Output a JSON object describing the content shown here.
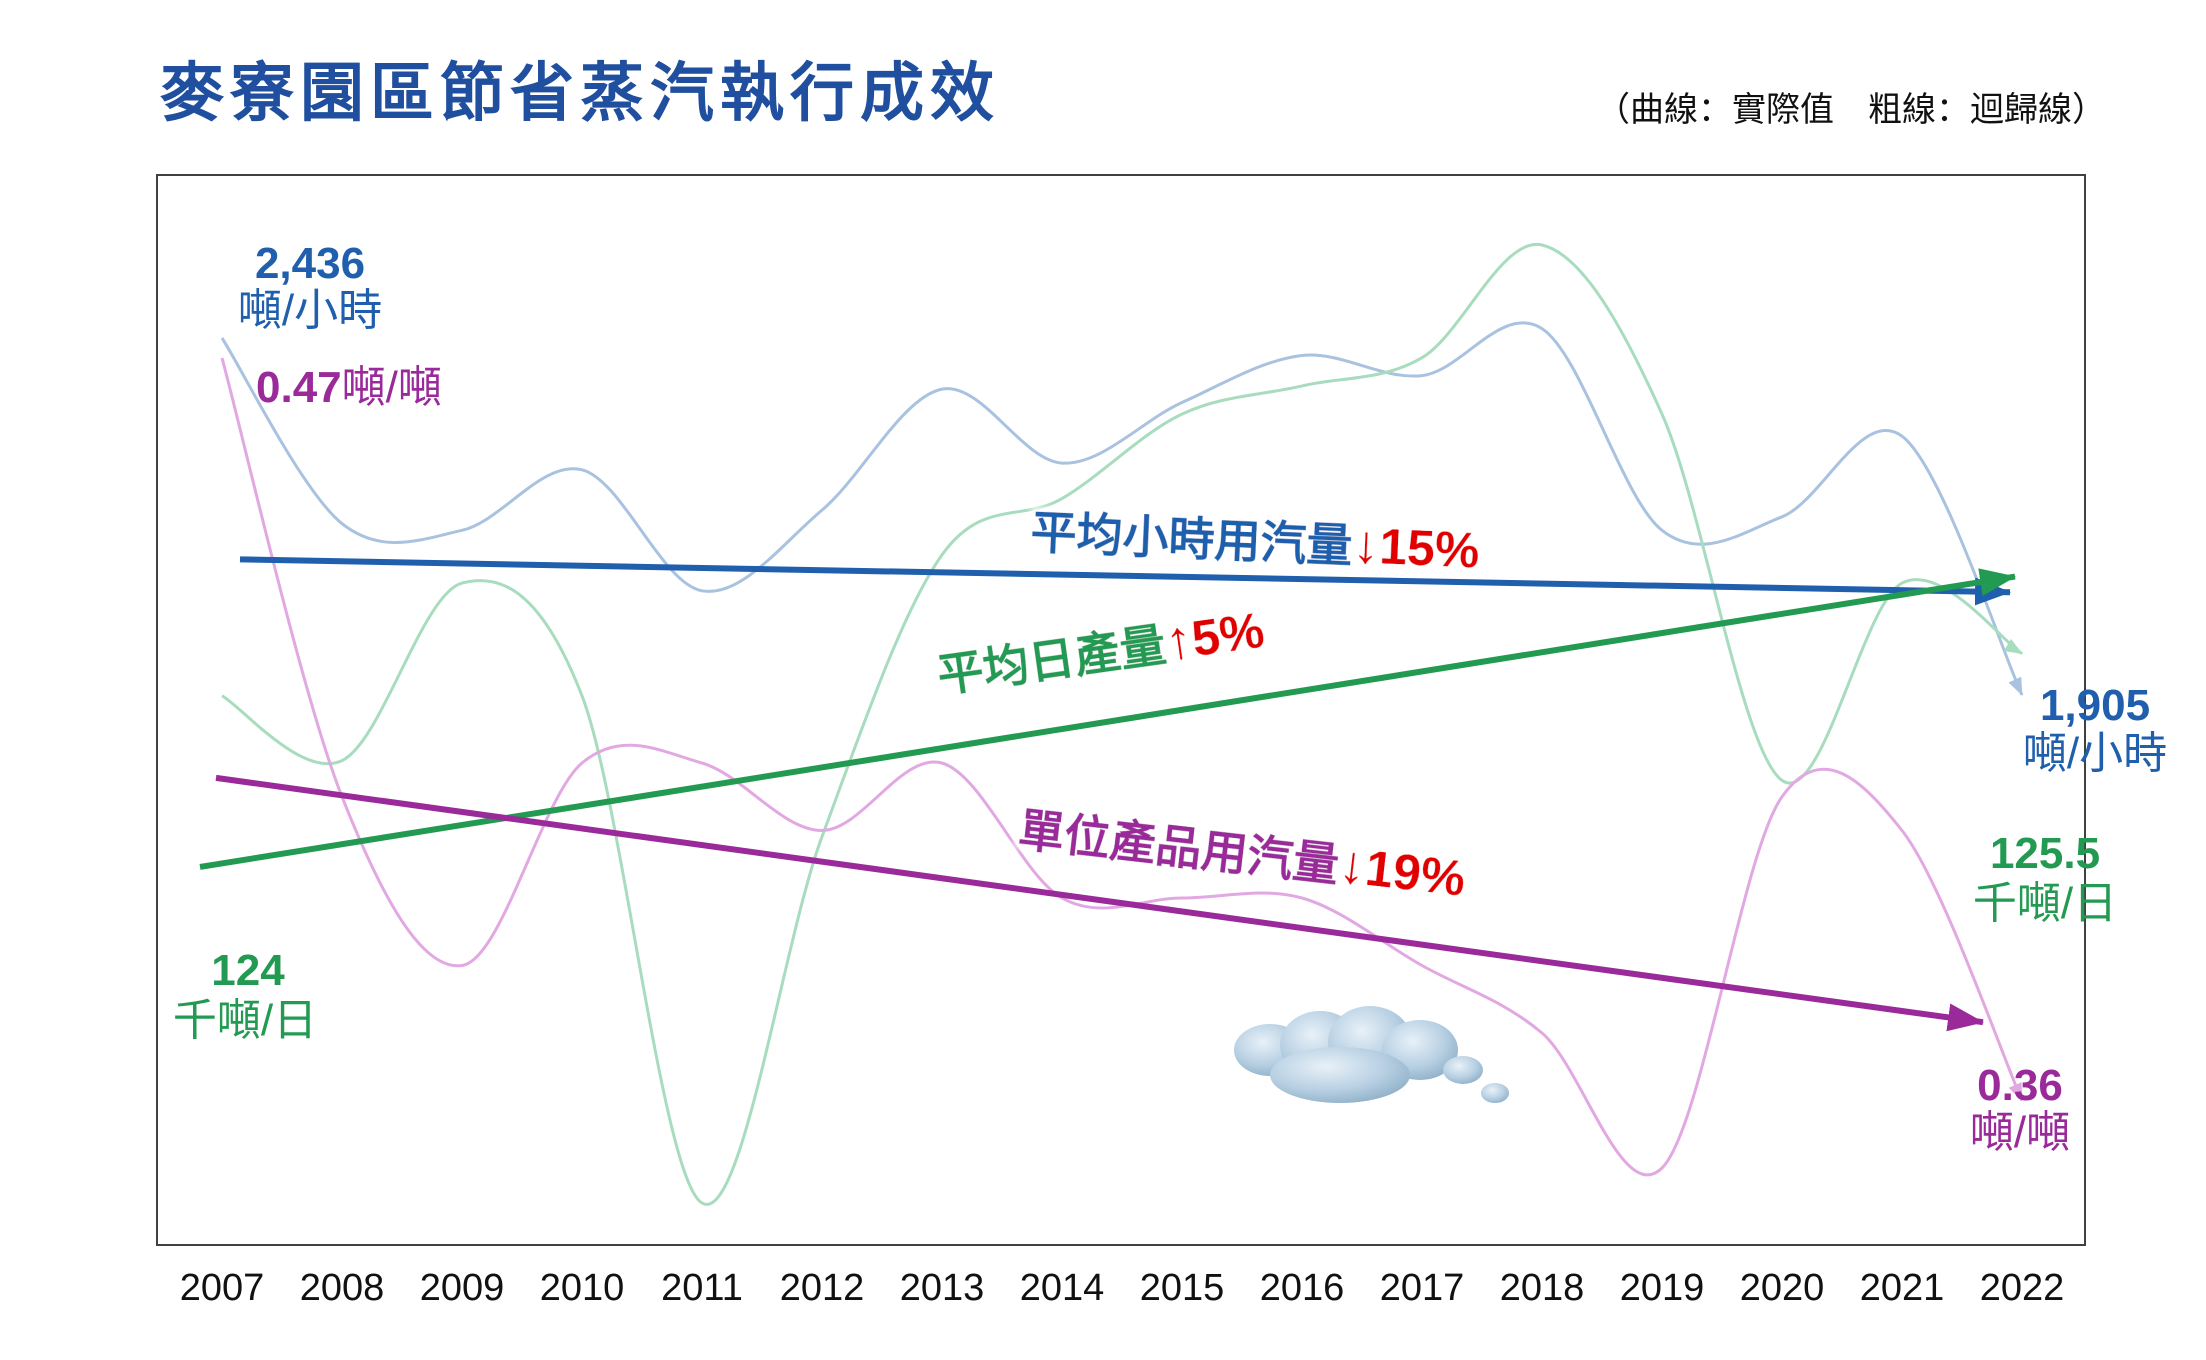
{
  "title": "麥寮園區節省蒸汽執行成效",
  "subtitle": "（曲線：實際值　粗線：迴歸線）",
  "colors": {
    "steam_per_hour": "#1f5fad",
    "daily_output": "#239a52",
    "steam_per_unit": "#9a2a9a",
    "arrow_pct": "#e00000",
    "frame": "#404040"
  },
  "icons": {
    "cloud": "cloud-icon"
  },
  "chart_data": {
    "type": "line",
    "x": [
      "2007",
      "2008",
      "2009",
      "2010",
      "2011",
      "2012",
      "2013",
      "2014",
      "2015",
      "2016",
      "2017",
      "2018",
      "2019",
      "2020",
      "2021",
      "2022"
    ],
    "series": [
      {
        "key": "steam_per_hour",
        "values": [
          2436,
          2160,
          2150,
          2240,
          2060,
          2180,
          2360,
          2250,
          2340,
          2410,
          2380,
          2450,
          2150,
          2170,
          2290,
          1905
        ],
        "trend_label": "平均小時用汽量",
        "trend_arrow": "↓",
        "trend_pct": "15%",
        "start_value": "2,436",
        "start_unit": "噸/小時",
        "end_value": "1,905",
        "end_unit": "噸/小時"
      },
      {
        "key": "daily_output",
        "values": [
          124,
          121.7,
          128,
          124,
          106,
          119,
          129,
          131,
          134,
          135,
          136,
          140,
          134,
          121,
          128,
          125.5
        ],
        "trend_label": "平均日產量",
        "trend_arrow": "↑",
        "trend_pct": "5%",
        "start_value": "124",
        "start_unit": "千噸/日",
        "end_value": "125.5",
        "end_unit": "千噸/日"
      },
      {
        "key": "steam_per_unit",
        "values": [
          0.47,
          0.405,
          0.38,
          0.41,
          0.41,
          0.4,
          0.41,
          0.39,
          0.39,
          0.39,
          0.38,
          0.37,
          0.35,
          0.405,
          0.4,
          0.36
        ],
        "trend_label": "單位產品用汽量",
        "trend_arrow": "↓",
        "trend_pct": "19%",
        "start_value": "0.47",
        "start_unit": "噸/噸",
        "end_value": "0.36",
        "end_unit": "噸/噸"
      }
    ]
  }
}
